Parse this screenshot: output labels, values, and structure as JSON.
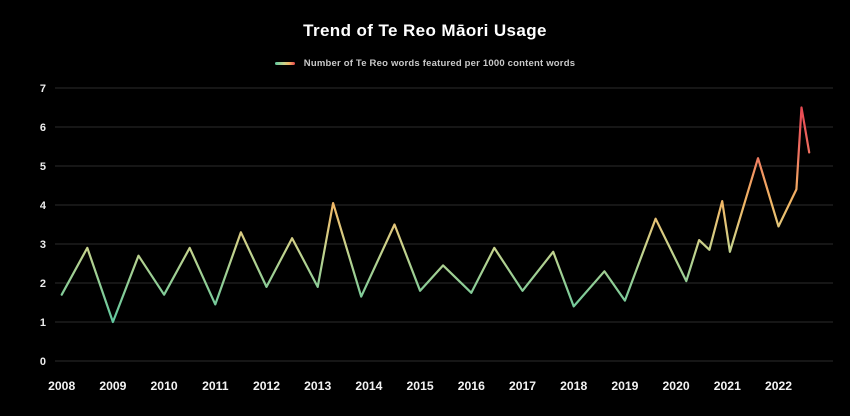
{
  "header": {
    "title": "Trend of Te Reo Māori Usage"
  },
  "legend": {
    "label": "Number of Te Reo words featured per 1000 content words"
  },
  "colors": {
    "background": "#000000",
    "gridline": "#2b2b2b",
    "tick_text": "#ededed",
    "title_text": "#ffffff",
    "legend_text": "#c9c9c9",
    "line_gradient_stops": [
      {
        "offset": 0.0,
        "color": "#52c6a4"
      },
      {
        "offset": 0.14,
        "color": "#60c8a0"
      },
      {
        "offset": 0.28,
        "color": "#8ecd96"
      },
      {
        "offset": 0.41,
        "color": "#c6d38d"
      },
      {
        "offset": 0.5,
        "color": "#e3c579"
      },
      {
        "offset": 0.58,
        "color": "#f0b665"
      },
      {
        "offset": 0.68,
        "color": "#f29a62"
      },
      {
        "offset": 0.76,
        "color": "#ee7260"
      },
      {
        "offset": 0.88,
        "color": "#e95157"
      },
      {
        "offset": 1.0,
        "color": "#e73f4b"
      }
    ]
  },
  "chart_data": {
    "type": "line",
    "title": "Trend of Te Reo Māori Usage",
    "xlabel": "",
    "ylabel": "",
    "grid": "horizontal",
    "legend_position": "top-center",
    "x_ticks": [
      2008,
      2009,
      2010,
      2011,
      2012,
      2013,
      2014,
      2015,
      2016,
      2017,
      2018,
      2019,
      2020,
      2021,
      2022
    ],
    "y_ticks": [
      0,
      1,
      2,
      3,
      4,
      5,
      6,
      7
    ],
    "ylim": [
      0,
      7
    ],
    "xlim": [
      2007.86,
      2023.05
    ],
    "color_encoding": "line color maps value: teal (low) through yellow/amber (mid) to red (high)",
    "series": [
      {
        "name": "Number of Te Reo words featured per 1000 content words",
        "points": [
          [
            2008.0,
            1.7
          ],
          [
            2008.5,
            2.9
          ],
          [
            2009.0,
            1.0
          ],
          [
            2009.5,
            2.7
          ],
          [
            2010.0,
            1.7
          ],
          [
            2010.5,
            2.9
          ],
          [
            2011.0,
            1.45
          ],
          [
            2011.5,
            3.3
          ],
          [
            2012.0,
            1.9
          ],
          [
            2012.5,
            3.15
          ],
          [
            2013.0,
            1.9
          ],
          [
            2013.3,
            4.05
          ],
          [
            2013.85,
            1.65
          ],
          [
            2014.5,
            3.5
          ],
          [
            2015.0,
            1.8
          ],
          [
            2015.45,
            2.45
          ],
          [
            2016.0,
            1.75
          ],
          [
            2016.45,
            2.9
          ],
          [
            2017.0,
            1.8
          ],
          [
            2017.6,
            2.8
          ],
          [
            2018.0,
            1.4
          ],
          [
            2018.6,
            2.3
          ],
          [
            2019.0,
            1.55
          ],
          [
            2019.6,
            3.65
          ],
          [
            2020.2,
            2.05
          ],
          [
            2020.45,
            3.1
          ],
          [
            2020.65,
            2.85
          ],
          [
            2020.9,
            4.1
          ],
          [
            2021.05,
            2.8
          ],
          [
            2021.6,
            5.2
          ],
          [
            2022.0,
            3.45
          ],
          [
            2022.35,
            4.4
          ],
          [
            2022.45,
            6.5
          ],
          [
            2022.6,
            5.35
          ]
        ]
      }
    ]
  }
}
